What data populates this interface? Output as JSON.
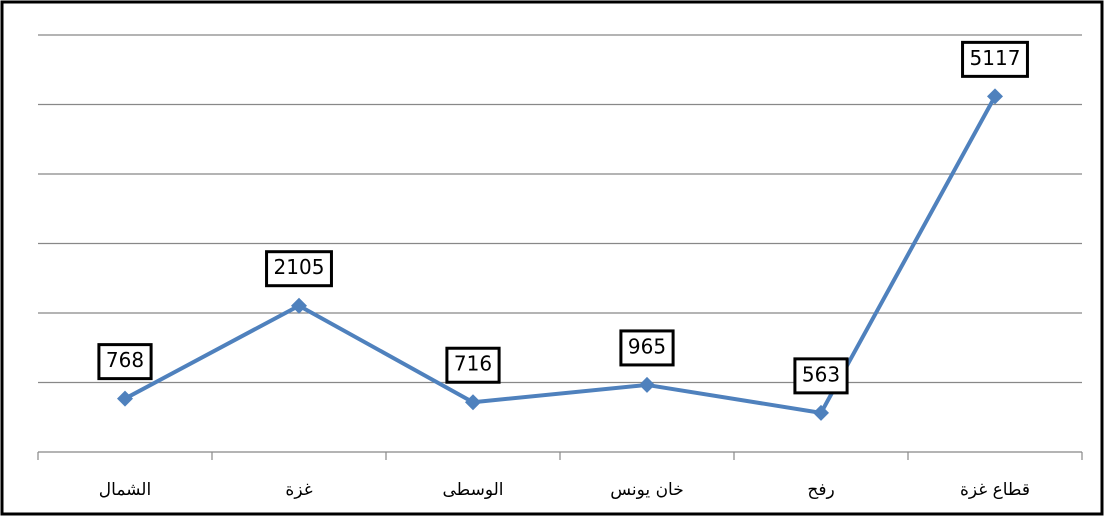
{
  "chart_data": {
    "type": "line",
    "categories": [
      "الشمال",
      "غزة",
      "الوسطى",
      "خان يونس",
      "رفح",
      "قطاع غزة"
    ],
    "series": [
      {
        "color": "#4f81bd",
        "values": [
          768,
          2105,
          716,
          965,
          563,
          5117
        ]
      }
    ],
    "ylim": [
      0,
      6000
    ],
    "yticks": [
      0,
      1000,
      2000,
      3000,
      4000,
      5000,
      6000
    ],
    "grid": true
  }
}
